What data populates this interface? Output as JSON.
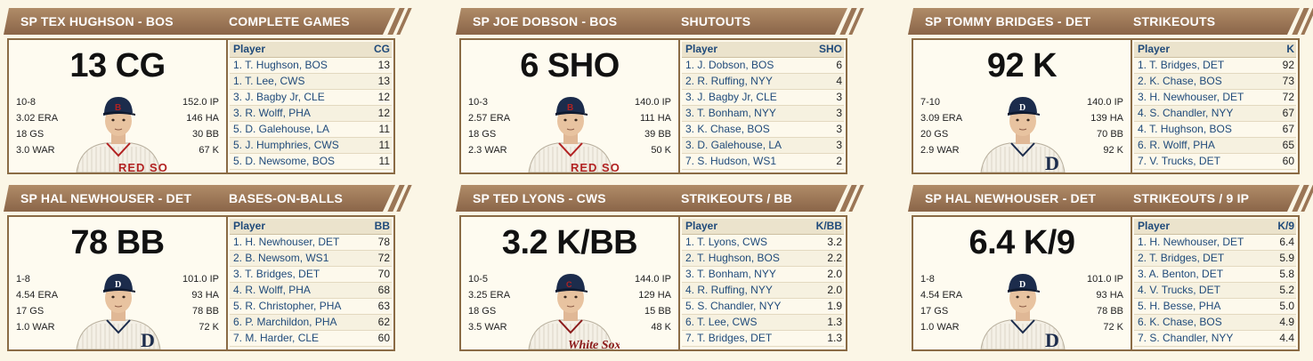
{
  "cards": [
    {
      "player_title": "SP TEX HUGHSON - BOS",
      "category": "COMPLETE GAMES",
      "big_stat": "13 CG",
      "stats_left": [
        "10-8",
        "3.02 ERA",
        "18 GS",
        "3.0 WAR"
      ],
      "stats_right": [
        "152.0 IP",
        "146 HA",
        "30 BB",
        "67 K"
      ],
      "uniform": "redsox",
      "table": {
        "header_player": "Player",
        "header_stat": "CG",
        "rows": [
          {
            "player": "1. T. Hughson, BOS",
            "value": "13"
          },
          {
            "player": "1. T. Lee, CWS",
            "value": "13"
          },
          {
            "player": "3. J. Bagby Jr, CLE",
            "value": "12"
          },
          {
            "player": "3. R. Wolff, PHA",
            "value": "12"
          },
          {
            "player": "5. D. Galehouse, LA",
            "value": "11"
          },
          {
            "player": "5. J. Humphries, CWS",
            "value": "11"
          },
          {
            "player": "5. D. Newsome, BOS",
            "value": "11"
          }
        ]
      }
    },
    {
      "player_title": "SP JOE DOBSON - BOS",
      "category": "SHUTOUTS",
      "big_stat": "6 SHO",
      "stats_left": [
        "10-3",
        "2.57 ERA",
        "18 GS",
        "2.3 WAR"
      ],
      "stats_right": [
        "140.0 IP",
        "111 HA",
        "39 BB",
        "50 K"
      ],
      "uniform": "redsox",
      "table": {
        "header_player": "Player",
        "header_stat": "SHO",
        "rows": [
          {
            "player": "1. J. Dobson, BOS",
            "value": "6"
          },
          {
            "player": "2. R. Ruffing, NYY",
            "value": "4"
          },
          {
            "player": "3. J. Bagby Jr, CLE",
            "value": "3"
          },
          {
            "player": "3. T. Bonham, NYY",
            "value": "3"
          },
          {
            "player": "3. K. Chase, BOS",
            "value": "3"
          },
          {
            "player": "3. D. Galehouse, LA",
            "value": "3"
          },
          {
            "player": "7. S. Hudson, WS1",
            "value": "2"
          }
        ]
      }
    },
    {
      "player_title": "SP TOMMY BRIDGES - DET",
      "category": "STRIKEOUTS",
      "big_stat": "92 K",
      "stats_left": [
        "7-10",
        "3.09 ERA",
        "20 GS",
        "2.9 WAR"
      ],
      "stats_right": [
        "140.0 IP",
        "139 HA",
        "70 BB",
        "92 K"
      ],
      "uniform": "tigers",
      "table": {
        "header_player": "Player",
        "header_stat": "K",
        "rows": [
          {
            "player": "1. T. Bridges, DET",
            "value": "92"
          },
          {
            "player": "2. K. Chase, BOS",
            "value": "73"
          },
          {
            "player": "3. H. Newhouser, DET",
            "value": "72"
          },
          {
            "player": "4. S. Chandler, NYY",
            "value": "67"
          },
          {
            "player": "4. T. Hughson, BOS",
            "value": "67"
          },
          {
            "player": "6. R. Wolff, PHA",
            "value": "65"
          },
          {
            "player": "7. V. Trucks, DET",
            "value": "60"
          }
        ]
      }
    },
    {
      "player_title": "SP HAL NEWHOUSER - DET",
      "category": "BASES-ON-BALLS",
      "big_stat": "78 BB",
      "stats_left": [
        "1-8",
        "4.54 ERA",
        "17 GS",
        "1.0 WAR"
      ],
      "stats_right": [
        "101.0 IP",
        "93 HA",
        "78 BB",
        "72 K"
      ],
      "uniform": "tigers",
      "table": {
        "header_player": "Player",
        "header_stat": "BB",
        "rows": [
          {
            "player": "1. H. Newhouser, DET",
            "value": "78"
          },
          {
            "player": "2. B. Newsom, WS1",
            "value": "72"
          },
          {
            "player": "3. T. Bridges, DET",
            "value": "70"
          },
          {
            "player": "4. R. Wolff, PHA",
            "value": "68"
          },
          {
            "player": "5. R. Christopher, PHA",
            "value": "63"
          },
          {
            "player": "6. P. Marchildon, PHA",
            "value": "62"
          },
          {
            "player": "7. M. Harder, CLE",
            "value": "60"
          }
        ]
      }
    },
    {
      "player_title": "SP TED LYONS - CWS",
      "category": "STRIKEOUTS / BB",
      "big_stat": "3.2 K/BB",
      "stats_left": [
        "10-5",
        "3.25 ERA",
        "18 GS",
        "3.5 WAR"
      ],
      "stats_right": [
        "144.0 IP",
        "129 HA",
        "15 BB",
        "48 K"
      ],
      "uniform": "whitesox",
      "table": {
        "header_player": "Player",
        "header_stat": "K/BB",
        "rows": [
          {
            "player": "1. T. Lyons, CWS",
            "value": "3.2"
          },
          {
            "player": "2. T. Hughson, BOS",
            "value": "2.2"
          },
          {
            "player": "3. T. Bonham, NYY",
            "value": "2.0"
          },
          {
            "player": "4. R. Ruffing, NYY",
            "value": "2.0"
          },
          {
            "player": "5. S. Chandler, NYY",
            "value": "1.9"
          },
          {
            "player": "6. T. Lee, CWS",
            "value": "1.3"
          },
          {
            "player": "7. T. Bridges, DET",
            "value": "1.3"
          }
        ]
      }
    },
    {
      "player_title": "SP HAL NEWHOUSER - DET",
      "category": "STRIKEOUTS / 9 IP",
      "big_stat": "6.4 K/9",
      "stats_left": [
        "1-8",
        "4.54 ERA",
        "17 GS",
        "1.0 WAR"
      ],
      "stats_right": [
        "101.0 IP",
        "93 HA",
        "78 BB",
        "72 K"
      ],
      "uniform": "tigers",
      "table": {
        "header_player": "Player",
        "header_stat": "K/9",
        "rows": [
          {
            "player": "1. H. Newhouser, DET",
            "value": "6.4"
          },
          {
            "player": "2. T. Bridges, DET",
            "value": "5.9"
          },
          {
            "player": "3. A. Benton, DET",
            "value": "5.8"
          },
          {
            "player": "4. V. Trucks, DET",
            "value": "5.2"
          },
          {
            "player": "5. H. Besse, PHA",
            "value": "5.0"
          },
          {
            "player": "6. K. Chase, BOS",
            "value": "4.9"
          },
          {
            "player": "7. S. Chandler, NYY",
            "value": "4.4"
          }
        ]
      }
    }
  ],
  "logos": {
    "redsox": "RED SOX",
    "whitesox": "White Sox",
    "tigers": "D"
  },
  "colors": {
    "header": "#9b7656",
    "border": "#8a6b45",
    "link": "#1f4a7a",
    "redsox": "#b22222",
    "whitesox": "#8b1a1a",
    "tigers": "#1c2c4c"
  }
}
